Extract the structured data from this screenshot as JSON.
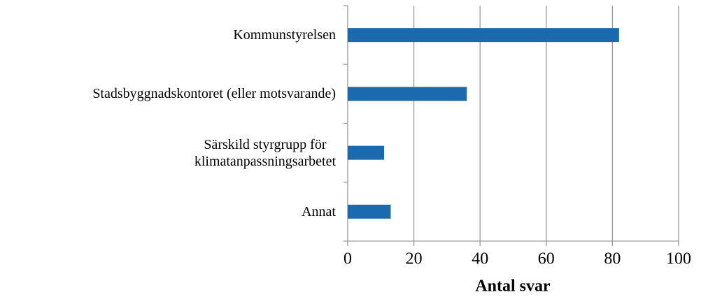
{
  "chart_data": {
    "type": "bar",
    "orientation": "horizontal",
    "categories": [
      "Kommunstyrelsen",
      "Stadsbyggnadskontoret (eller motsvarande)",
      "Särskild styrgrupp för\nklimatanpassningsarbetet",
      "Annat"
    ],
    "values": [
      82,
      36,
      11,
      13
    ],
    "color": "#1c6aae",
    "xlim": [
      0,
      100
    ],
    "xticks": [
      0,
      20,
      40,
      60,
      80,
      100
    ],
    "grid": true,
    "x_label": "Antal svar"
  }
}
